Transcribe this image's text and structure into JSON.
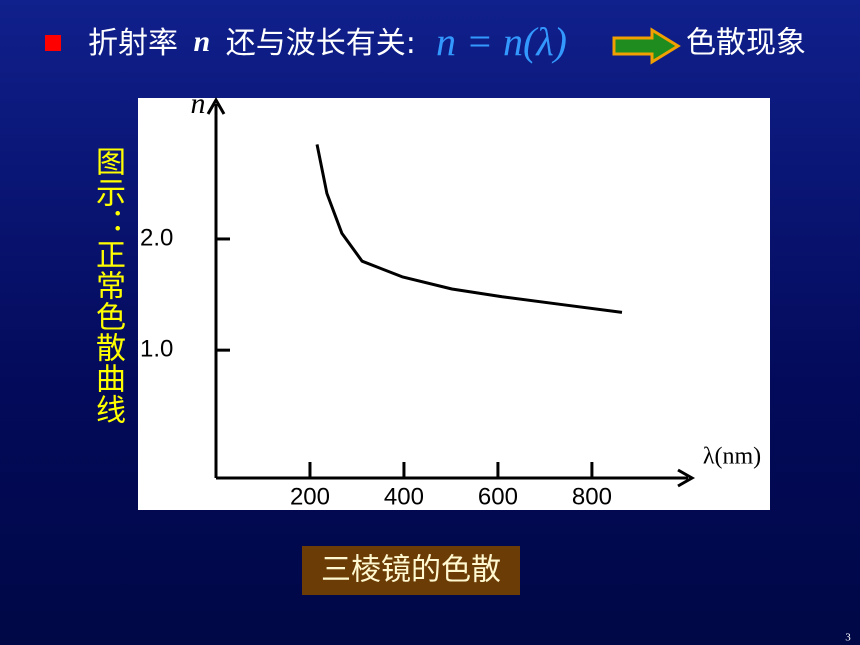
{
  "header": {
    "lead": "折射率",
    "symbol": "n",
    "rest": "还与波长有关:",
    "formula": "n = n(λ)",
    "result": "色散现象"
  },
  "side_caption": "图示：正常色散曲线",
  "caption": "三棱镜的色散",
  "page_number": "3",
  "chart_data": {
    "type": "line",
    "x_label": "λ(nm)",
    "y_label": "n",
    "x": [
      215,
      236,
      268,
      311,
      396,
      502,
      609,
      736,
      864
    ],
    "series": [
      {
        "color": "#000000",
        "values": [
          2.85,
          2.41,
          2.05,
          1.8,
          1.66,
          1.55,
          1.48,
          1.41,
          1.34
        ]
      }
    ],
    "xlim": [
      0,
      1013
    ],
    "ylim": [
      -0.15,
      3.25
    ],
    "xticks": [
      200,
      400,
      600,
      800
    ],
    "yticks": [
      {
        "value": 1,
        "label": "1.0"
      },
      {
        "value": 2,
        "label": "2.0"
      }
    ]
  }
}
